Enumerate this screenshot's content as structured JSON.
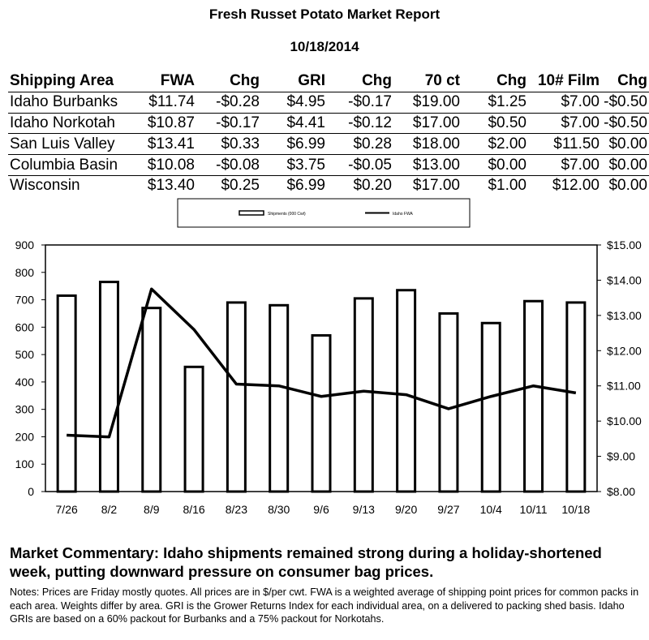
{
  "report": {
    "title": "Fresh Russet Potato Market Report",
    "date": "10/18/2014"
  },
  "table": {
    "headers": [
      "Shipping Area",
      "FWA",
      "Chg",
      "GRI",
      "Chg",
      "70 ct",
      "Chg",
      "10# Film",
      "Chg"
    ],
    "rows": [
      [
        "Idaho Burbanks",
        "$11.74",
        "-$0.28",
        "$4.95",
        "-$0.17",
        "$19.00",
        "$1.25",
        "$7.00",
        "-$0.50"
      ],
      [
        "Idaho Norkotah",
        "$10.87",
        "-$0.17",
        "$4.41",
        "-$0.12",
        "$17.00",
        "$0.50",
        "$7.00",
        "-$0.50"
      ],
      [
        "San Luis Valley",
        "$13.41",
        "$0.33",
        "$6.99",
        "$0.28",
        "$18.00",
        "$2.00",
        "$11.50",
        "$0.00"
      ],
      [
        "Columbia Basin",
        "$10.08",
        "-$0.08",
        "$3.75",
        "-$0.05",
        "$13.00",
        "$0.00",
        "$7.00",
        "$0.00"
      ],
      [
        "Wisconsin",
        "$13.40",
        "$0.25",
        "$6.99",
        "$0.20",
        "$17.00",
        "$1.00",
        "$12.00",
        "$0.00"
      ]
    ]
  },
  "chart_data": {
    "type": "bar",
    "categories": [
      "7/26",
      "8/2",
      "8/9",
      "8/16",
      "8/23",
      "8/30",
      "9/6",
      "9/13",
      "9/20",
      "9/27",
      "10/4",
      "10/11",
      "10/18"
    ],
    "series": [
      {
        "name": "Shipments (000 Cwt)",
        "type": "bar",
        "axis": "left",
        "values": [
          715,
          765,
          670,
          455,
          690,
          680,
          570,
          705,
          735,
          650,
          615,
          695,
          690
        ]
      },
      {
        "name": "Idaho FWA",
        "type": "line",
        "axis": "right",
        "values": [
          9.6,
          9.55,
          13.75,
          12.6,
          11.05,
          11.0,
          10.7,
          10.85,
          10.75,
          10.35,
          10.7,
          11.0,
          10.8
        ]
      }
    ],
    "y_left": {
      "range": [
        0,
        900
      ],
      "ticks": [
        "0",
        "100",
        "200",
        "300",
        "400",
        "500",
        "600",
        "700",
        "800",
        "900"
      ]
    },
    "y_right": {
      "range": [
        8,
        15
      ],
      "ticks": [
        "$8.00",
        "$9.00",
        "$10.00",
        "$11.00",
        "$12.00",
        "$13.00",
        "$14.00",
        "$15.00"
      ]
    },
    "legend_position": "top-center",
    "grid": false
  },
  "commentary": "Market Commentary: Idaho shipments remained strong during a holiday-shortened week, putting downward pressure on consumer bag prices.",
  "notes": "Notes: Prices are Friday mostly quotes. All prices are in $/per cwt. FWA is a weighted average of shipping point prices for  common packs in each area. Weights differ by area. GRI is the Grower Returns Index for each individual area, on a delivered to packing shed basis. Idaho GRIs are based on a 60% packout for Burbanks and a 75% packout for Norkotahs."
}
